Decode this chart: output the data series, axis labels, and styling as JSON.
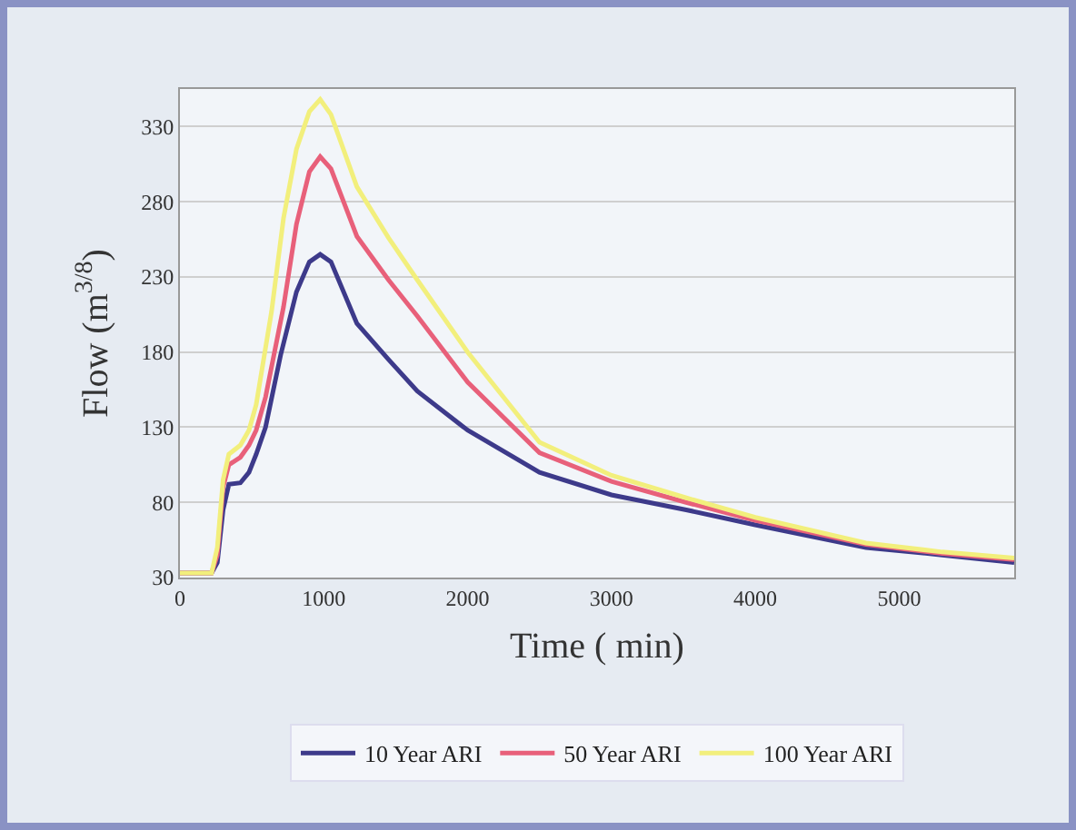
{
  "chart_data": {
    "type": "line",
    "xlabel": "Time ( min)",
    "ylabel": "Flow (m$^{3/8}$)",
    "xlim": [
      0,
      5800
    ],
    "xticks": [
      0,
      1000,
      2000,
      3000,
      4000,
      5000
    ],
    "ylim": [
      30,
      355
    ],
    "yticks": [
      30,
      80,
      130,
      180,
      230,
      280,
      330
    ],
    "grid": "y",
    "legend": "bottom",
    "marker": "none",
    "line_style": "solid",
    "series": [
      {
        "name": "10 Year ARI",
        "color": "#3d3a8a",
        "x": [
          0,
          220,
          260,
          300,
          340,
          420,
          480,
          530,
          595,
          700,
          810,
          900,
          975,
          1050,
          1230,
          1450,
          1650,
          2000,
          2500,
          3000,
          3520,
          4000,
          4770,
          5300,
          5800
        ],
        "values": [
          33,
          33,
          40,
          75,
          92,
          93,
          100,
          112,
          130,
          178,
          220,
          240,
          245,
          240,
          199,
          175,
          154,
          128,
          100,
          85,
          75,
          65,
          50,
          45,
          40
        ]
      },
      {
        "name": "50 Year ARI",
        "color": "#e8607a",
        "x": [
          0,
          220,
          260,
          300,
          340,
          420,
          480,
          530,
          595,
          720,
          810,
          900,
          975,
          1050,
          1230,
          1450,
          1650,
          2000,
          2500,
          3000,
          3520,
          4000,
          4770,
          5300,
          5800
        ],
        "values": [
          33,
          33,
          45,
          90,
          105,
          110,
          118,
          128,
          150,
          210,
          265,
          300,
          310,
          302,
          257,
          228,
          204,
          160,
          113,
          94,
          80,
          68,
          52,
          46,
          42
        ]
      },
      {
        "name": "100 Year ARI",
        "color": "#f2ef7c",
        "x": [
          0,
          220,
          260,
          300,
          340,
          420,
          480,
          530,
          637,
          720,
          810,
          900,
          975,
          1050,
          1230,
          1450,
          1650,
          2000,
          2500,
          3000,
          3520,
          4000,
          4770,
          5300,
          5800
        ],
        "values": [
          33,
          33,
          50,
          95,
          112,
          118,
          128,
          145,
          207,
          269,
          315,
          340,
          348,
          338,
          290,
          256,
          228,
          180,
          120,
          98,
          83,
          70,
          53,
          47,
          43
        ]
      }
    ]
  }
}
